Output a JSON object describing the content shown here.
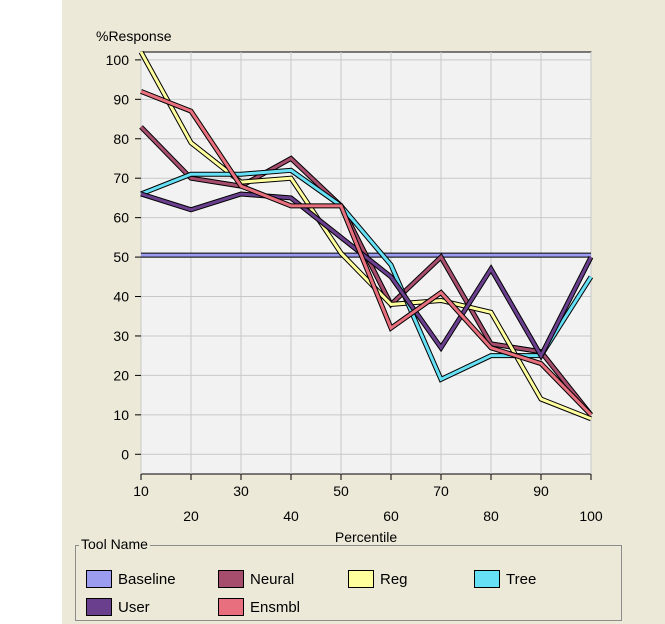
{
  "chart_data": {
    "type": "line",
    "ylabel": "%Response",
    "xlabel": "Percentile",
    "x": [
      10,
      20,
      30,
      40,
      50,
      60,
      70,
      80,
      90,
      100
    ],
    "x_ticks_top_row": [
      "10",
      "30",
      "50",
      "70",
      "90"
    ],
    "x_ticks_bottom_row": [
      "20",
      "40",
      "60",
      "80",
      "100"
    ],
    "y_ticks": [
      "0",
      "10",
      "20",
      "30",
      "40",
      "50",
      "60",
      "70",
      "80",
      "90",
      "100"
    ],
    "ylim": [
      -5,
      102
    ],
    "xlim": [
      10,
      100
    ],
    "grid": true,
    "legend_title": "Tool Name",
    "legend_position": "bottom",
    "series": [
      {
        "name": "Baseline",
        "color": "#9b9bf0",
        "values": [
          50.5,
          50.5,
          50.5,
          50.5,
          50.5,
          50.5,
          50.5,
          50.5,
          50.5,
          50.5
        ]
      },
      {
        "name": "Neural",
        "color": "#a64d6e",
        "values": [
          83,
          70,
          68,
          75,
          63,
          38,
          50,
          28,
          26,
          10
        ]
      },
      {
        "name": "Reg",
        "color": "#ffff9e",
        "values": [
          102,
          79,
          69,
          70,
          51,
          38,
          39,
          36,
          14,
          9
        ]
      },
      {
        "name": "Tree",
        "color": "#66e0f5",
        "values": [
          66,
          71,
          71,
          72,
          63,
          48,
          19,
          25,
          25,
          45
        ]
      },
      {
        "name": "User",
        "color": "#6a3f8e",
        "values": [
          66,
          62,
          66,
          65,
          55,
          45,
          27,
          47,
          25,
          50
        ]
      },
      {
        "name": "Ensmbl",
        "color": "#e8707e",
        "values": [
          92,
          87,
          68,
          63,
          63,
          32,
          41,
          27,
          23,
          10
        ]
      }
    ]
  }
}
